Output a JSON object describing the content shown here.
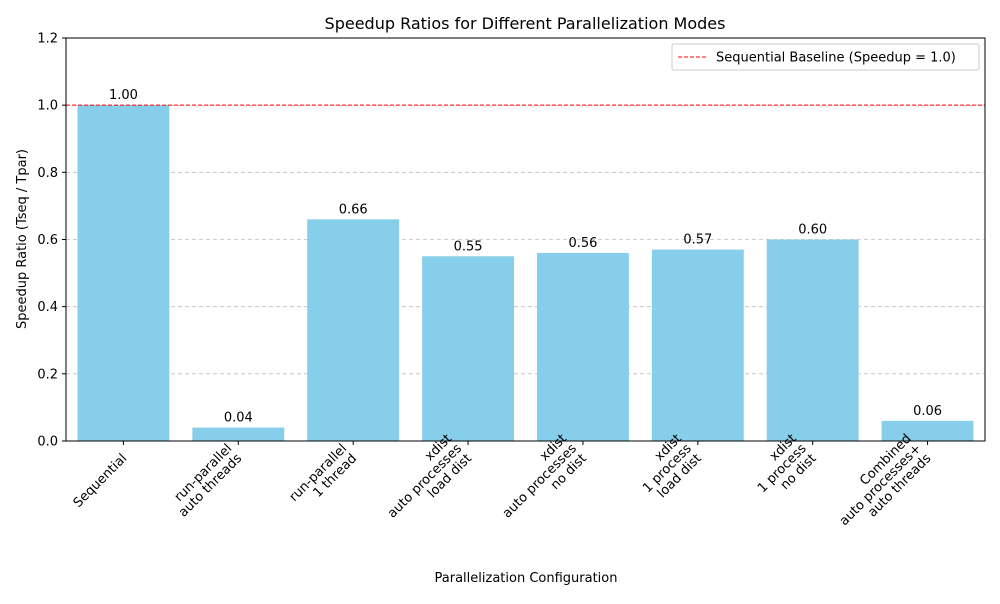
{
  "chart_data": {
    "type": "bar",
    "title": "Speedup Ratios for Different Parallelization Modes",
    "xlabel": "Parallelization Configuration",
    "ylabel": "Speedup Ratio (Tseq / Tpar)",
    "ylim": [
      0,
      1.2
    ],
    "yticks": [
      "0.0",
      "0.2",
      "0.4",
      "0.6",
      "0.8",
      "1.0",
      "1.2"
    ],
    "grid": "horizontal dashed",
    "legend_position": "top-right",
    "categories": [
      [
        "Sequential"
      ],
      [
        "run-parallel",
        "auto threads"
      ],
      [
        "run-parallel",
        "1 thread"
      ],
      [
        "xdist",
        "auto processes",
        "load dist"
      ],
      [
        "xdist",
        "auto processes",
        "no dist"
      ],
      [
        "xdist",
        "1 process",
        "load dist"
      ],
      [
        "xdist",
        "1 process",
        "no dist"
      ],
      [
        "Combined",
        "auto processes+",
        "auto threads"
      ]
    ],
    "values": [
      1.0,
      0.04,
      0.66,
      0.55,
      0.56,
      0.57,
      0.6,
      0.06
    ],
    "value_labels": [
      "1.00",
      "0.04",
      "0.66",
      "0.55",
      "0.56",
      "0.57",
      "0.60",
      "0.06"
    ],
    "bar_color": "#87ceeb",
    "baseline": {
      "value": 1.0,
      "label": "Sequential Baseline (Speedup = 1.0)",
      "color": "#ff0000",
      "style": "dashed"
    }
  }
}
